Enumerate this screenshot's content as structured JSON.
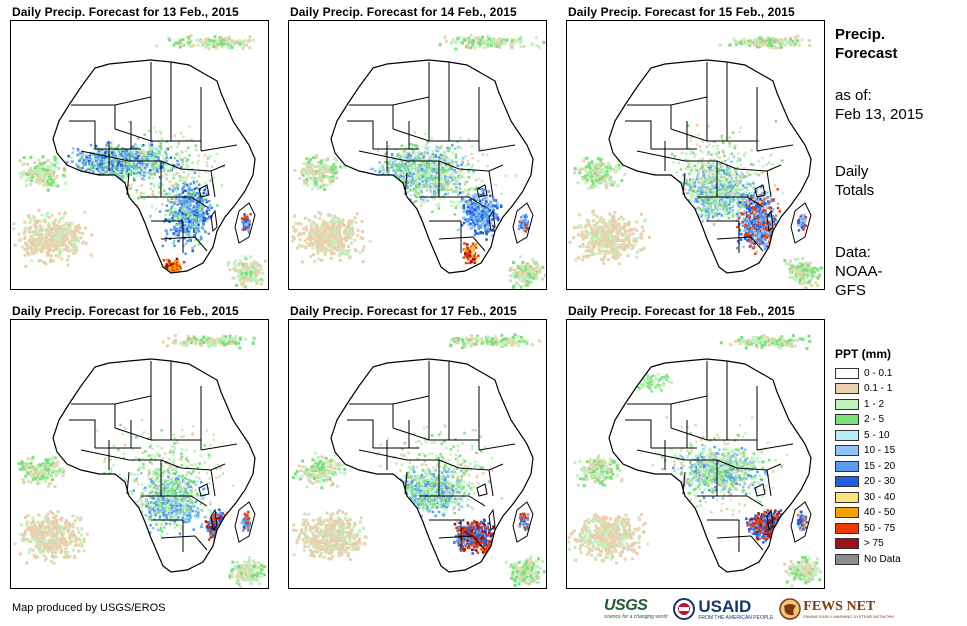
{
  "panels": [
    {
      "title": "Daily Precip. Forecast for 13 Feb., 2015"
    },
    {
      "title": "Daily Precip. Forecast for 14 Feb., 2015"
    },
    {
      "title": "Daily Precip. Forecast for 15 Feb., 2015"
    },
    {
      "title": "Daily Precip. Forecast for 16 Feb., 2015"
    },
    {
      "title": "Daily Precip. Forecast for 17 Feb., 2015"
    },
    {
      "title": "Daily Precip. Forecast for 18 Feb., 2015"
    }
  ],
  "side_info": {
    "title_line1": "Precip.",
    "title_line2": "Forecast",
    "asof_line1": "as of:",
    "asof_line2": "Feb 13, 2015",
    "totals_line1": "Daily",
    "totals_line2": "Totals",
    "data_line1": "Data:",
    "data_line2": "NOAA-",
    "data_line3": "GFS"
  },
  "legend": {
    "title": "PPT (mm)",
    "items": [
      {
        "label": "0 - 0.1",
        "color": "#ffffff"
      },
      {
        "label": "0.1 - 1",
        "color": "#e8d2ae"
      },
      {
        "label": "1 - 2",
        "color": "#bff2bf"
      },
      {
        "label": "2 - 5",
        "color": "#7be27b"
      },
      {
        "label": "5 - 10",
        "color": "#b6f0f7"
      },
      {
        "label": "10 - 15",
        "color": "#8fc4f5"
      },
      {
        "label": "15 - 20",
        "color": "#5a9bef"
      },
      {
        "label": "20 - 30",
        "color": "#1f5ee6"
      },
      {
        "label": "30 - 40",
        "color": "#fde27a"
      },
      {
        "label": "40 - 50",
        "color": "#f5a100"
      },
      {
        "label": "50 - 75",
        "color": "#ee3c00"
      },
      {
        "label": "> 75",
        "color": "#a0101a"
      },
      {
        "label": "No Data",
        "color": "#8c8c8c"
      }
    ]
  },
  "credit": "Map produced by USGS/EROS",
  "logos": {
    "usgs": "USGS",
    "usgs_tagline": "science for a changing world",
    "usaid": "USAID",
    "usaid_tagline": "FROM THE AMERICAN PEOPLE",
    "fews": "FEWS NET",
    "fews_tagline": "FAMINE EARLY WARNING SYSTEMS NETWORK"
  }
}
